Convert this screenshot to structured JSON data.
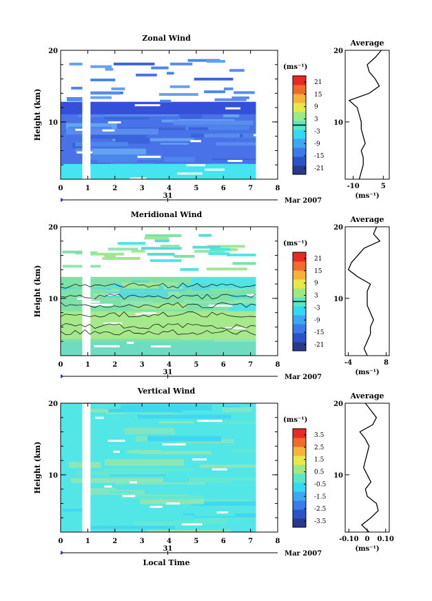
{
  "chart_data": [
    {
      "type": "heatmap",
      "title": "Zonal Wind",
      "ylabel": "Height (km)",
      "ylim": [
        2,
        20
      ],
      "xlim": [
        0,
        8
      ],
      "x_ticks": [
        "0",
        "1",
        "2",
        "3",
        "4",
        "5",
        "6",
        "7",
        "8"
      ],
      "y_ticks": [
        "20",
        "10"
      ],
      "date_label": "31",
      "month_label": "Mar 2007",
      "colorbar": {
        "unit_label": "(ms⁻¹)",
        "ticks": [
          "21",
          "15",
          "9",
          "3",
          "-3",
          "-9",
          "-15",
          "-21"
        ],
        "range": [
          -24,
          24
        ],
        "zero_line": true
      },
      "data_extent": {
        "x_start": 0,
        "x_end": 7.2,
        "y_top_main": 12.8,
        "gap": [
          0.8,
          1.1
        ]
      },
      "average_profile": {
        "title": "Average",
        "xlabel": "(ms⁻¹)",
        "x_ticks": [
          "-10",
          "5"
        ],
        "xlim": [
          -14,
          8
        ],
        "y_ticks": [
          "20",
          "10"
        ],
        "heights": [
          2,
          3,
          4,
          5,
          6,
          7,
          8,
          9,
          10,
          11,
          12,
          13,
          14,
          15,
          16,
          17,
          18,
          19,
          20
        ],
        "values": [
          -7,
          -6,
          -5,
          -5,
          -6,
          -4,
          -5,
          -6,
          -6,
          -7,
          -8,
          -12,
          -2,
          3,
          1,
          -2,
          -3,
          1,
          4
        ]
      }
    },
    {
      "type": "heatmap",
      "title": "Meridional Wind",
      "ylabel": "Height (km)",
      "ylim": [
        2,
        20
      ],
      "xlim": [
        0,
        8
      ],
      "x_ticks": [
        "0",
        "1",
        "2",
        "3",
        "4",
        "5",
        "6",
        "7",
        "8"
      ],
      "y_ticks": [
        "20",
        "10"
      ],
      "date_label": "31",
      "month_label": "Mar 2007",
      "colorbar": {
        "unit_label": "(ms⁻¹)",
        "ticks": [
          "21",
          "15",
          "9",
          "3",
          "-3",
          "-9",
          "-15",
          "-21"
        ],
        "range": [
          -24,
          24
        ],
        "zero_line": true
      },
      "data_extent": {
        "x_start": 0,
        "x_end": 7.2,
        "y_top_main": 13,
        "gap": [
          0.8,
          1.1
        ]
      },
      "average_profile": {
        "title": "Average",
        "xlabel": "(ms⁻¹)",
        "x_ticks": [
          "-4",
          "8"
        ],
        "xlim": [
          -5,
          9
        ],
        "y_ticks": [
          "20",
          "10"
        ],
        "heights": [
          2,
          3,
          4,
          5,
          6,
          7,
          8,
          9,
          10,
          11,
          12,
          13,
          14,
          15,
          16,
          17,
          18,
          19,
          20
        ],
        "values": [
          2,
          1,
          2,
          3,
          3,
          4,
          3,
          2,
          2,
          2,
          3,
          -1,
          -4,
          -3,
          -1,
          1,
          6,
          4,
          5
        ]
      }
    },
    {
      "type": "heatmap",
      "title": "Vertical Wind",
      "xlabel": "Local Time",
      "ylabel": "Height (km)",
      "ylim": [
        2,
        20
      ],
      "xlim": [
        0,
        8
      ],
      "x_ticks": [
        "0",
        "1",
        "2",
        "3",
        "4",
        "5",
        "6",
        "7",
        "8"
      ],
      "y_ticks": [
        "20",
        "10"
      ],
      "date_label": "31",
      "month_label": "Mar 2007",
      "colorbar": {
        "unit_label": "(ms⁻¹)",
        "ticks": [
          "3.5",
          "2.5",
          "1.5",
          "0.5",
          "-0.5",
          "-1.5",
          "-2.5",
          "-3.5"
        ],
        "range": [
          -4,
          4
        ],
        "zero_line": false
      },
      "data_extent": {
        "x_start": 0,
        "x_end": 7.2,
        "y_top_main": 20,
        "gap": [
          0.8,
          1.1
        ]
      },
      "average_profile": {
        "title": "Average",
        "xlabel": "(ms⁻¹)",
        "x_ticks": [
          "-0.10",
          "0",
          "0.10"
        ],
        "xlim": [
          -0.12,
          0.12
        ],
        "y_ticks": [
          "20",
          "10"
        ],
        "heights": [
          2,
          3,
          4,
          5,
          6,
          7,
          8,
          9,
          10,
          11,
          12,
          13,
          14,
          15,
          16,
          17,
          18,
          19,
          20
        ],
        "values": [
          0.01,
          -0.03,
          0.02,
          0.06,
          0.05,
          0.0,
          -0.01,
          0.02,
          0.0,
          -0.02,
          -0.01,
          0.0,
          0.01,
          -0.01,
          -0.04,
          0.03,
          0.05,
          0.02,
          -0.01
        ]
      }
    }
  ]
}
